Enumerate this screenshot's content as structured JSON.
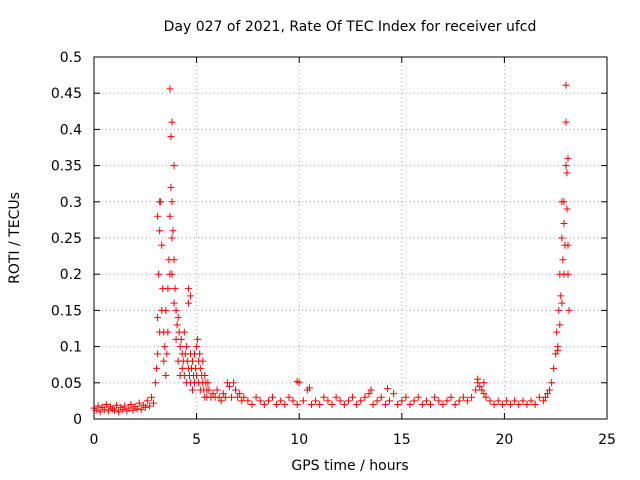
{
  "chart_data": {
    "type": "scatter",
    "title": "Day 027 of 2021, Rate Of TEC Index for receiver ufcd",
    "xlabel": "GPS time / hours",
    "ylabel": "ROTI / TECUs",
    "xlim": [
      0,
      25
    ],
    "ylim": [
      0,
      0.5
    ],
    "xticks": [
      "0",
      "5",
      "10",
      "15",
      "20",
      "25"
    ],
    "yticks": [
      "0",
      "0.05",
      "0.1",
      "0.15",
      "0.2",
      "0.25",
      "0.3",
      "0.35",
      "0.4",
      "0.45",
      "0.5"
    ],
    "grid": true,
    "marker": "+",
    "marker_color": "#ff0000",
    "series": [
      {
        "x": [
          0.0,
          0.1,
          0.2,
          0.3,
          0.4,
          0.5,
          0.6,
          0.7,
          0.8,
          0.9,
          1.0,
          1.1,
          1.2,
          1.3,
          1.4,
          1.5,
          1.6,
          1.7,
          1.8,
          1.9,
          2.0,
          2.1,
          2.2,
          2.3,
          2.4,
          2.5,
          2.6,
          2.7,
          2.8,
          2.9,
          3.0,
          3.05,
          3.1,
          3.1,
          3.15,
          3.2,
          3.2,
          3.25,
          3.3,
          3.3,
          3.35,
          3.4,
          3.4,
          3.45,
          3.5,
          3.5,
          3.55,
          3.6,
          3.6,
          3.65,
          3.7,
          3.7,
          3.75,
          3.8,
          3.8,
          3.8,
          3.85,
          3.9,
          3.9,
          3.95,
          4.0,
          4.0,
          4.05,
          4.1,
          4.1,
          4.15,
          4.2,
          4.2,
          4.25,
          4.3,
          4.3,
          4.35,
          4.4,
          4.4,
          4.45,
          4.5,
          4.5,
          4.55,
          4.6,
          4.6,
          4.65,
          4.7,
          4.7,
          4.75,
          4.8,
          4.8,
          4.85,
          4.9,
          4.9,
          4.95,
          5.0,
          5.0,
          5.05,
          5.1,
          5.1,
          5.15,
          5.2,
          5.2,
          5.25,
          5.3,
          5.3,
          5.35,
          5.4,
          5.4,
          5.45,
          5.5,
          5.5,
          5.55,
          5.6,
          5.7,
          5.8,
          5.9,
          6.0,
          6.1,
          6.2,
          6.3,
          6.4,
          6.5,
          6.6,
          6.7,
          6.8,
          6.9,
          7.0,
          7.1,
          7.2,
          7.3,
          7.5,
          7.7,
          7.9,
          8.1,
          8.3,
          8.5,
          8.7,
          8.9,
          9.1,
          9.3,
          9.5,
          9.7,
          9.9,
          10.0,
          10.2,
          10.4,
          10.6,
          10.8,
          11.0,
          11.2,
          11.4,
          11.6,
          11.8,
          12.0,
          12.2,
          12.4,
          12.6,
          12.8,
          13.0,
          13.2,
          13.4,
          13.6,
          13.8,
          14.0,
          14.2,
          14.4,
          14.6,
          14.8,
          15.0,
          15.2,
          15.4,
          15.6,
          15.8,
          16.0,
          16.2,
          16.4,
          16.6,
          16.8,
          17.0,
          17.2,
          17.4,
          17.6,
          17.8,
          18.0,
          18.2,
          18.4,
          18.6,
          18.7,
          18.8,
          18.9,
          19.0,
          19.1,
          19.3,
          19.5,
          19.7,
          19.9,
          20.1,
          20.3,
          20.5,
          20.7,
          20.9,
          21.1,
          21.3,
          21.5,
          21.7,
          21.9,
          22.0,
          22.1,
          22.2,
          22.3,
          22.4,
          22.5,
          22.55,
          22.6,
          22.65,
          22.7,
          22.7,
          22.75,
          22.8,
          22.8,
          22.85,
          22.9,
          22.9,
          22.95,
          23.0,
          23.0,
          23.05,
          23.1,
          23.1,
          23.15,
          3.1,
          3.2,
          3.7,
          3.8,
          3.75,
          3.9,
          4.6,
          4.7,
          9.9,
          10.5,
          13.5,
          14.3,
          18.7,
          19.0,
          22.6,
          22.8,
          22.9,
          23.0,
          23.05,
          23.1
        ],
        "y": [
          0.015,
          0.012,
          0.018,
          0.01,
          0.016,
          0.013,
          0.02,
          0.011,
          0.017,
          0.014,
          0.012,
          0.019,
          0.01,
          0.016,
          0.013,
          0.018,
          0.011,
          0.015,
          0.02,
          0.012,
          0.017,
          0.014,
          0.022,
          0.013,
          0.019,
          0.016,
          0.025,
          0.018,
          0.03,
          0.022,
          0.05,
          0.07,
          0.14,
          0.09,
          0.2,
          0.26,
          0.12,
          0.3,
          0.24,
          0.15,
          0.18,
          0.12,
          0.08,
          0.1,
          0.15,
          0.06,
          0.09,
          0.18,
          0.12,
          0.22,
          0.28,
          0.2,
          0.32,
          0.3,
          0.25,
          0.2,
          0.26,
          0.22,
          0.16,
          0.18,
          0.15,
          0.11,
          0.13,
          0.14,
          0.08,
          0.12,
          0.1,
          0.06,
          0.11,
          0.09,
          0.07,
          0.08,
          0.12,
          0.06,
          0.09,
          0.1,
          0.05,
          0.08,
          0.16,
          0.07,
          0.06,
          0.09,
          0.05,
          0.07,
          0.08,
          0.04,
          0.06,
          0.09,
          0.05,
          0.07,
          0.1,
          0.06,
          0.11,
          0.08,
          0.05,
          0.09,
          0.07,
          0.04,
          0.06,
          0.08,
          0.05,
          0.04,
          0.06,
          0.03,
          0.05,
          0.04,
          0.03,
          0.05,
          0.04,
          0.03,
          0.035,
          0.03,
          0.04,
          0.03,
          0.025,
          0.035,
          0.03,
          0.05,
          0.045,
          0.03,
          0.05,
          0.04,
          0.03,
          0.035,
          0.025,
          0.03,
          0.025,
          0.02,
          0.03,
          0.025,
          0.02,
          0.025,
          0.03,
          0.02,
          0.025,
          0.02,
          0.03,
          0.025,
          0.02,
          0.05,
          0.025,
          0.04,
          0.02,
          0.025,
          0.02,
          0.03,
          0.025,
          0.02,
          0.03,
          0.025,
          0.02,
          0.025,
          0.03,
          0.02,
          0.025,
          0.03,
          0.035,
          0.02,
          0.025,
          0.03,
          0.02,
          0.025,
          0.035,
          0.02,
          0.025,
          0.03,
          0.02,
          0.025,
          0.03,
          0.02,
          0.025,
          0.02,
          0.03,
          0.025,
          0.02,
          0.025,
          0.03,
          0.02,
          0.025,
          0.03,
          0.025,
          0.03,
          0.04,
          0.05,
          0.045,
          0.04,
          0.035,
          0.03,
          0.025,
          0.02,
          0.025,
          0.02,
          0.025,
          0.02,
          0.025,
          0.02,
          0.025,
          0.02,
          0.025,
          0.02,
          0.03,
          0.025,
          0.03,
          0.035,
          0.04,
          0.05,
          0.07,
          0.09,
          0.12,
          0.1,
          0.15,
          0.2,
          0.13,
          0.17,
          0.25,
          0.16,
          0.22,
          0.3,
          0.2,
          0.24,
          0.41,
          0.35,
          0.29,
          0.24,
          0.2,
          0.15,
          0.28,
          0.3,
          0.456,
          0.41,
          0.39,
          0.35,
          0.18,
          0.17,
          0.052,
          0.043,
          0.04,
          0.042,
          0.055,
          0.05,
          0.095,
          0.3,
          0.27,
          0.461,
          0.34,
          0.36
        ]
      }
    ]
  }
}
